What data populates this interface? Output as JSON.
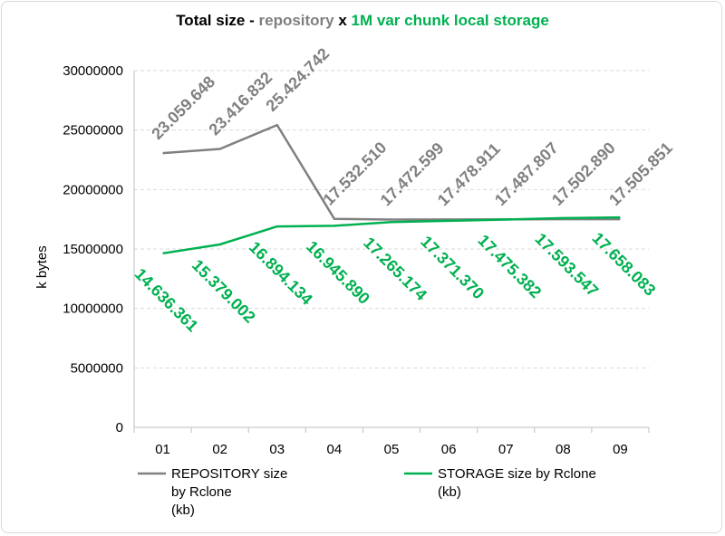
{
  "title": {
    "part1": "Total size - ",
    "part2": "repository",
    "part3": " x ",
    "part4": "1M var chunk  local storage"
  },
  "chart_data": {
    "type": "line",
    "categories": [
      "01",
      "02",
      "03",
      "04",
      "05",
      "06",
      "07",
      "08",
      "09"
    ],
    "ylabel": "k bytes",
    "ylim": [
      0,
      30000000
    ],
    "yticks": [
      "0",
      "5000000",
      "10000000",
      "15000000",
      "20000000",
      "25000000",
      "30000000"
    ],
    "grid": true,
    "legend_position": "bottom",
    "series": [
      {
        "name": "REPOSITORY size\nby Rclone\n(kb)",
        "color": "#808080",
        "values": [
          23059648,
          23416832,
          25424742,
          17532510,
          17472599,
          17478911,
          17487807,
          17502890,
          17505851
        ],
        "labels": [
          "23.059.648",
          "23.416.832",
          "25.424.742",
          "17.532.510",
          "17.472.599",
          "17.478.911",
          "17.487.807",
          "17.502.890",
          "17.505.851"
        ]
      },
      {
        "name": "STORAGE size by Rclone\n(kb)",
        "color": "#00b050",
        "values": [
          14636361,
          15379002,
          16894134,
          16945890,
          17265174,
          17371370,
          17475382,
          17593547,
          17658083
        ],
        "labels": [
          "14.636.361",
          "15.379.002",
          "16.894.134",
          "16.945.890",
          "17.265.174",
          "17.371.370",
          "17.475.382",
          "17.593.547",
          "17.658.083"
        ]
      }
    ]
  }
}
